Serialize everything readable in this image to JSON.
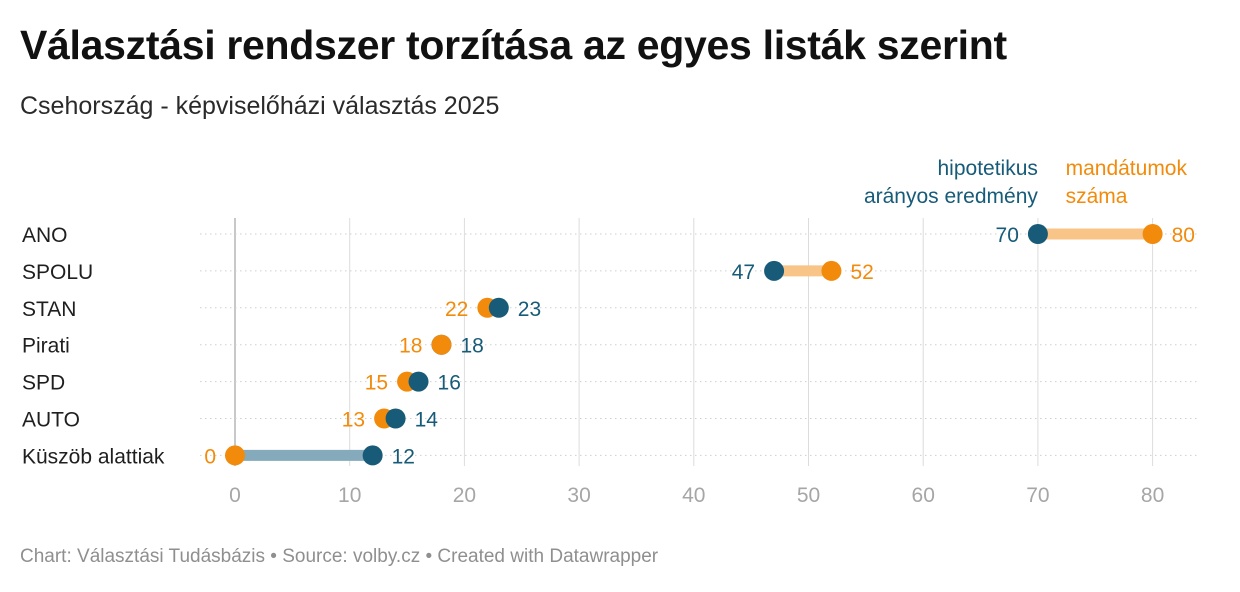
{
  "header": {
    "title": "Választási rendszer torzítása az egyes listák szerint",
    "subtitle": "Csehország - képviselőházi választás 2025"
  },
  "footer": {
    "text": "Chart: Választási Tudásbázis • Source: volby.cz • Created with Datawrapper"
  },
  "colors": {
    "proportional": "#175b78",
    "seats": "#f28b0c",
    "seats_bar": "#f8c487",
    "proportional_bar": "#85aabb",
    "grid": "#dcdcdc",
    "tick": "#a6a6a6"
  },
  "chart_data": {
    "type": "dot-range",
    "title": "Választási rendszer torzítása az egyes listák szerint",
    "subtitle": "Csehország - képviselőházi választás 2025",
    "categories": [
      "ANO",
      "SPOLU",
      "STAN",
      "Pirati",
      "SPD",
      "AUTO",
      "Küszöb alattiak"
    ],
    "series": [
      {
        "name": "hipotetikus arányos eredmény",
        "legend_lines": [
          "hipotetikus",
          "arányos eredmény"
        ],
        "values": [
          70,
          47,
          23,
          18,
          16,
          14,
          12
        ]
      },
      {
        "name": "mandátumok száma",
        "legend_lines": [
          "mandátumok",
          "száma"
        ],
        "values": [
          80,
          52,
          22,
          18,
          15,
          13,
          0
        ]
      }
    ],
    "xlim": [
      0,
      83
    ],
    "xticks": [
      0,
      10,
      20,
      30,
      40,
      50,
      60,
      70,
      80
    ],
    "grid": true,
    "legend": "top-right, annotated above ANO row"
  }
}
